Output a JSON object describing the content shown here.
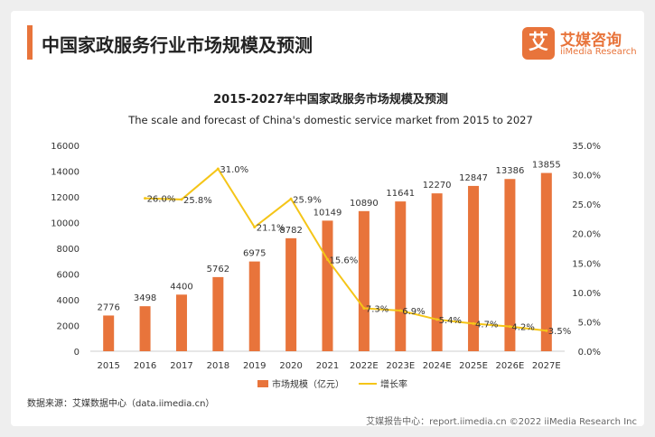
{
  "page_title": "中国家政服务行业市场规模及预测",
  "logo": {
    "cn": "艾媒咨询",
    "en": "iiMedia Research",
    "badge": "艾"
  },
  "source": "数据来源：艾媒数据中心（data.iimedia.cn）",
  "footer": "艾媒报告中心：report.iimedia.cn  ©2022  iiMedia Research  Inc",
  "colors": {
    "bar": "#e8743b",
    "line": "#f5c518",
    "accent": "#e8743b"
  },
  "chart_data": {
    "type": "bar",
    "title": "2015-2027年中国家政服务市场规模及预测",
    "subtitle": "The scale and forecast of China's domestic service market from 2015 to 2027",
    "categories": [
      "2015",
      "2016",
      "2017",
      "2018",
      "2019",
      "2020",
      "2021",
      "2022E",
      "2023E",
      "2024E",
      "2025E",
      "2026E",
      "2027E"
    ],
    "series": [
      {
        "name": "市场规模（亿元）",
        "type": "bar",
        "values": [
          2776,
          3498,
          4400,
          5762,
          6975,
          8782,
          10149,
          10890,
          11641,
          12270,
          12847,
          13386,
          13855
        ],
        "labels": [
          "2776",
          "3498",
          "4400",
          "5762",
          "6975",
          "8782",
          "10149",
          "10890",
          "11641",
          "12270",
          "12847",
          "13386",
          "13855"
        ]
      },
      {
        "name": "增长率",
        "type": "line",
        "values": [
          null,
          26.0,
          25.8,
          31.0,
          21.1,
          25.9,
          15.6,
          7.3,
          6.9,
          5.4,
          4.7,
          4.2,
          3.5
        ],
        "labels": [
          null,
          "26.0%",
          "25.8%",
          "31.0%",
          "21.1%",
          "25.9%",
          "15.6%",
          "7.3%",
          "6.9%",
          "5.4%",
          "4.7%",
          "4.2%",
          "3.5%"
        ]
      }
    ],
    "ylim": [
      0,
      16000
    ],
    "y_ticks": [
      "0",
      "2000",
      "4000",
      "6000",
      "8000",
      "10000",
      "12000",
      "14000",
      "16000"
    ],
    "y2lim": [
      0,
      35
    ],
    "y2_ticks": [
      "0.0%",
      "5.0%",
      "10.0%",
      "15.0%",
      "20.0%",
      "25.0%",
      "30.0%",
      "35.0%"
    ],
    "grid": false,
    "legend": "bottom"
  }
}
